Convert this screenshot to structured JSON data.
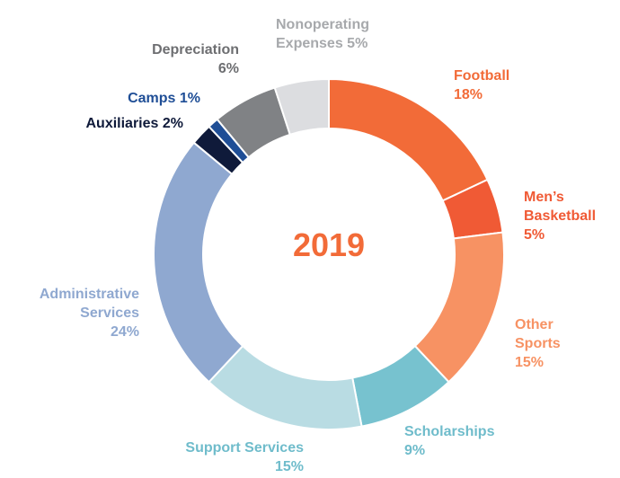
{
  "chart_data": {
    "type": "donut",
    "center_label": "2019",
    "categories": [
      "Football",
      "Men’s Basketball",
      "Other Sports",
      "Scholarships",
      "Support Services",
      "Administrative Services",
      "Auxiliaries",
      "Camps",
      "Depreciation",
      "Nonoperating Expenses"
    ],
    "values": [
      18,
      5,
      15,
      9,
      15,
      24,
      2,
      1,
      6,
      5
    ],
    "value_labels": [
      "18%",
      "5%",
      "15%",
      "9%",
      "15%",
      "24%",
      "2%",
      "1%",
      "6%",
      "5%"
    ],
    "colors": [
      "#f26b38",
      "#f05a35",
      "#f79263",
      "#77c2cf",
      "#b9dce3",
      "#8fa8d0",
      "#0f1a3a",
      "#1f4e96",
      "#808285",
      "#dcdde0"
    ],
    "label_colors": [
      "#f26b38",
      "#f05a35",
      "#f79263",
      "#6fbccb",
      "#6fbccb",
      "#8fa8d0",
      "#0f1a3a",
      "#1f4e96",
      "#6d6e71",
      "#a7a9ac"
    ]
  }
}
